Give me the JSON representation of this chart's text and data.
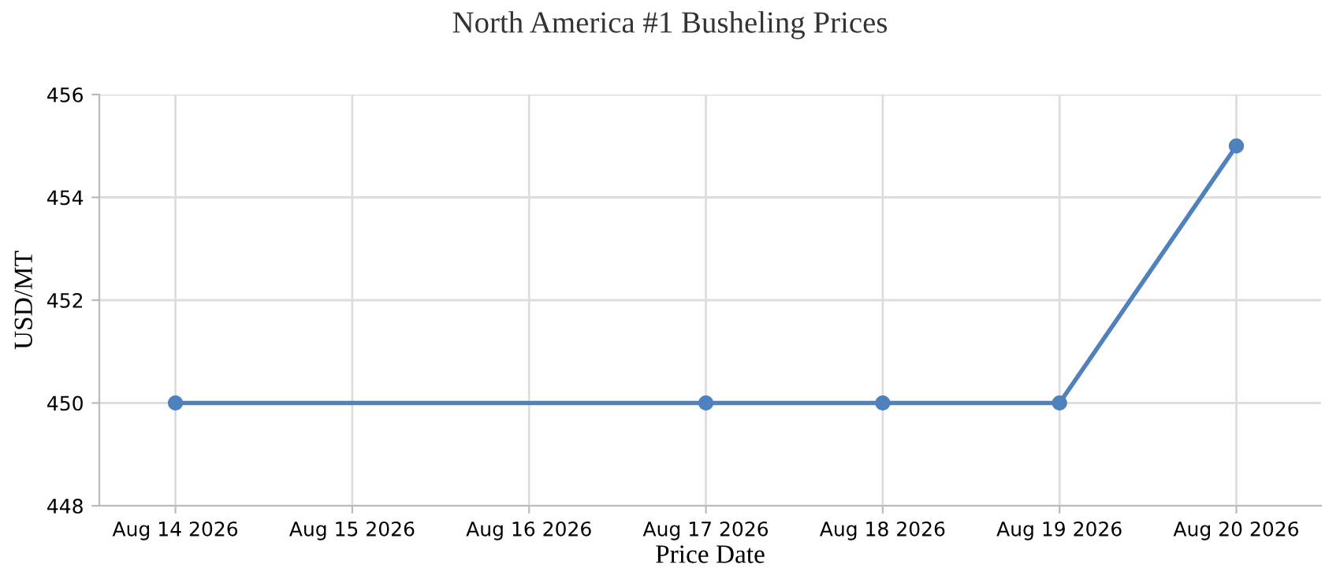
{
  "chart_data": {
    "type": "line",
    "title": "North America #1 Busheling Prices",
    "xlabel": "Price Date",
    "ylabel": "USD/MT",
    "x": [
      "2026-08-14",
      "2026-08-17",
      "2026-08-18",
      "2026-08-19",
      "2026-08-20"
    ],
    "series": [
      {
        "color": "#4f81bc",
        "values": [
          450,
          450,
          450,
          450,
          455
        ]
      }
    ],
    "xlim": [
      "2026-08-13T13:40",
      "2026-08-20T11:30"
    ],
    "xticks": [
      {
        "value": "2026-08-14",
        "label": "Aug 14 2026"
      },
      {
        "value": "2026-08-15",
        "label": "Aug 15 2026"
      },
      {
        "value": "2026-08-16",
        "label": "Aug 16 2026"
      },
      {
        "value": "2026-08-17",
        "label": "Aug 17 2026"
      },
      {
        "value": "2026-08-18",
        "label": "Aug 18 2026"
      },
      {
        "value": "2026-08-19",
        "label": "Aug 19 2026"
      },
      {
        "value": "2026-08-20",
        "label": "Aug 20 2026"
      }
    ],
    "ylim": [
      448,
      456
    ],
    "yticks": [
      448,
      450,
      452,
      454,
      456
    ],
    "grid": true,
    "marker": "circle",
    "line_style": "solid"
  }
}
